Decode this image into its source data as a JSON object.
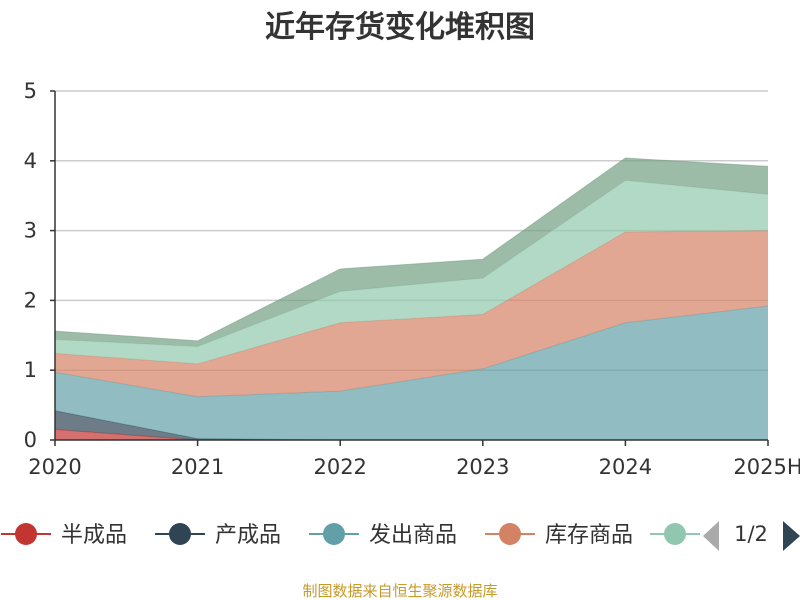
{
  "chart_data": {
    "type": "area",
    "stacked": true,
    "title": "近年存货变化堆积图",
    "categories": [
      "2020",
      "2021",
      "2022",
      "2023",
      "2024",
      "2025H"
    ],
    "ylim": [
      0,
      5
    ],
    "yticks": [
      "0",
      "1",
      "2",
      "3",
      "4",
      "5"
    ],
    "grid": true,
    "legend_position": "bottom",
    "series": [
      {
        "name": "半成品",
        "color": "#c23531",
        "values": [
          0.15,
          0.0,
          0.0,
          0.0,
          0.0,
          0.0
        ]
      },
      {
        "name": "产成品",
        "color": "#2f4554",
        "values": [
          0.27,
          0.02,
          0.0,
          0.0,
          0.0,
          0.0
        ]
      },
      {
        "name": "发出商品",
        "color": "#61a0a8",
        "values": [
          0.55,
          0.6,
          0.7,
          1.02,
          1.68,
          1.92
        ]
      },
      {
        "name": "库存商品",
        "color": "#d48265",
        "values": [
          0.27,
          0.47,
          0.98,
          0.78,
          1.3,
          1.08
        ]
      },
      {
        "name": "",
        "color": "#91c7ae",
        "values": [
          0.2,
          0.25,
          0.45,
          0.52,
          0.74,
          0.52
        ]
      },
      {
        "name": "",
        "color": "#749f83",
        "values": [
          0.12,
          0.08,
          0.32,
          0.27,
          0.32,
          0.4
        ]
      }
    ]
  },
  "legend": {
    "items": [
      {
        "name": "半成品",
        "color": "#c23531"
      },
      {
        "name": "产成品",
        "color": "#2f4554"
      },
      {
        "name": "发出商品",
        "color": "#61a0a8"
      },
      {
        "name": "库存商品",
        "color": "#d48265"
      },
      {
        "name": "",
        "color": "#91c7ae"
      }
    ],
    "page_text": "1/2"
  },
  "source_text": "制图数据来自恒生聚源数据库"
}
